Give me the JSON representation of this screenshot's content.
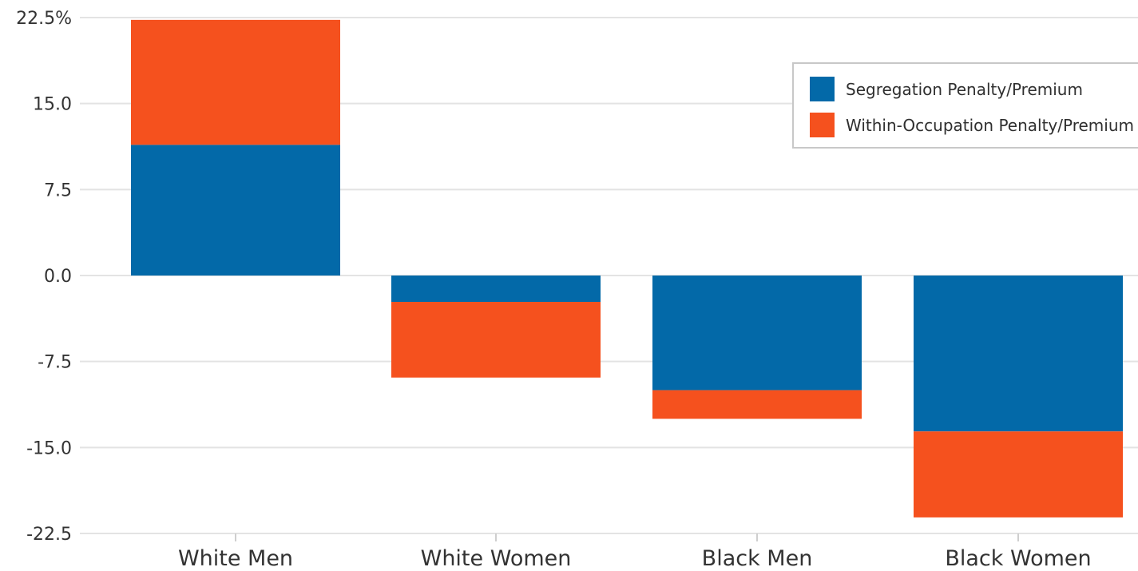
{
  "chart_data": {
    "type": "bar",
    "stacked": true,
    "categories": [
      "White Men",
      "White Women",
      "Black Men",
      "Black Women"
    ],
    "series": [
      {
        "name": "Segregation Penalty/Premium",
        "color": "#0369A8",
        "values": [
          11.4,
          -2.3,
          -10.0,
          -13.6
        ]
      },
      {
        "name": "Within-Occupation Penalty/Premium",
        "color": "#F5511E",
        "values": [
          10.9,
          -6.6,
          -2.5,
          -7.5
        ]
      }
    ],
    "yticks": [
      "22.5%",
      "15.0",
      "7.5",
      "0.0",
      "-7.5",
      "-15.0",
      "-22.5"
    ],
    "ylim": [
      -22.5,
      22.5
    ],
    "grid": true,
    "legend_position": "top-right"
  }
}
